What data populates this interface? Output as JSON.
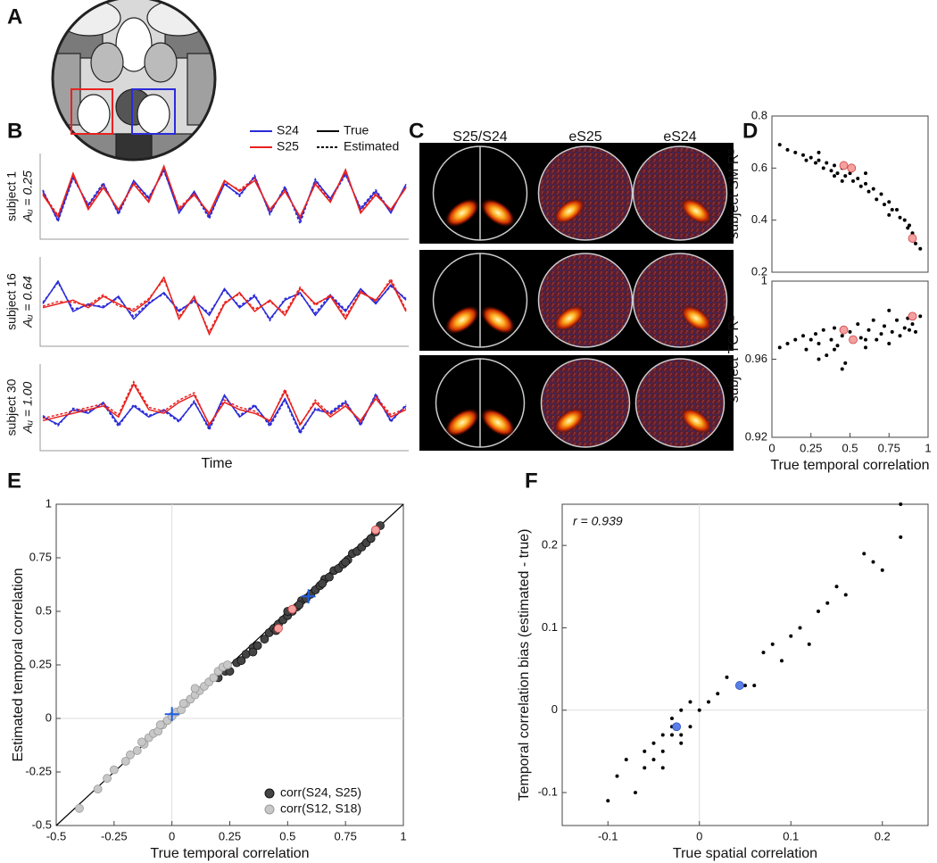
{
  "panel_labels": [
    "A",
    "B",
    "C",
    "D",
    "E",
    "F"
  ],
  "panel_c": {
    "titles": [
      "S25/S24",
      "eS25",
      "eS24"
    ]
  },
  "chart_data": [
    {
      "type": "line",
      "xlabel": "Time",
      "ylim": [
        0,
        1
      ],
      "legend": [
        {
          "name": "S24",
          "color": "#2b2bd9"
        },
        {
          "name": "S25",
          "color": "#e8221f"
        },
        {
          "name": "True",
          "dash": "none"
        },
        {
          "name": "Estimated",
          "dash": "3 2"
        }
      ],
      "panels": [
        {
          "label": "subject 1",
          "sublabel": "Aᵤ = 0.25",
          "series": [
            {
              "name": "S24",
              "style": "True",
              "values": [
                0.6,
                0.2,
                0.8,
                0.4,
                0.7,
                0.3,
                0.75,
                0.5,
                0.9,
                0.3,
                0.6,
                0.25,
                0.7,
                0.55,
                0.8,
                0.3,
                0.65,
                0.2,
                0.75,
                0.5,
                0.85,
                0.35,
                0.6,
                0.3,
                0.7
              ]
            },
            {
              "name": "S24",
              "style": "Estimated",
              "values": [
                0.62,
                0.18,
                0.78,
                0.42,
                0.72,
                0.28,
                0.73,
                0.52,
                0.88,
                0.33,
                0.58,
                0.22,
                0.72,
                0.53,
                0.82,
                0.28,
                0.67,
                0.15,
                0.77,
                0.48,
                0.83,
                0.37,
                0.62,
                0.32,
                0.68
              ]
            },
            {
              "name": "S25",
              "style": "True",
              "values": [
                0.55,
                0.25,
                0.85,
                0.35,
                0.65,
                0.35,
                0.7,
                0.45,
                0.95,
                0.35,
                0.55,
                0.3,
                0.75,
                0.6,
                0.75,
                0.35,
                0.6,
                0.25,
                0.7,
                0.45,
                0.9,
                0.3,
                0.55,
                0.35,
                0.65
              ]
            },
            {
              "name": "S25",
              "style": "Estimated",
              "values": [
                0.57,
                0.27,
                0.82,
                0.38,
                0.68,
                0.33,
                0.72,
                0.47,
                0.92,
                0.37,
                0.57,
                0.28,
                0.73,
                0.62,
                0.78,
                0.33,
                0.62,
                0.23,
                0.72,
                0.47,
                0.87,
                0.32,
                0.57,
                0.33,
                0.67
              ]
            }
          ]
        },
        {
          "label": "subject 16",
          "sublabel": "Aᵤ = 0.64",
          "series": [
            {
              "name": "S24",
              "style": "True",
              "values": [
                0.5,
                0.8,
                0.4,
                0.5,
                0.45,
                0.6,
                0.3,
                0.5,
                0.65,
                0.4,
                0.55,
                0.35,
                0.7,
                0.45,
                0.6,
                0.3,
                0.55,
                0.65,
                0.35,
                0.6,
                0.4,
                0.7,
                0.5,
                0.75,
                0.55
              ]
            },
            {
              "name": "S24",
              "style": "Estimated",
              "values": [
                0.52,
                0.78,
                0.43,
                0.48,
                0.47,
                0.58,
                0.33,
                0.52,
                0.63,
                0.42,
                0.53,
                0.38,
                0.68,
                0.47,
                0.62,
                0.28,
                0.57,
                0.63,
                0.38,
                0.62,
                0.42,
                0.68,
                0.52,
                0.73,
                0.57
              ]
            },
            {
              "name": "S25",
              "style": "True",
              "values": [
                0.45,
                0.5,
                0.55,
                0.45,
                0.6,
                0.5,
                0.4,
                0.55,
                0.85,
                0.3,
                0.6,
                0.1,
                0.5,
                0.65,
                0.4,
                0.55,
                0.35,
                0.7,
                0.5,
                0.6,
                0.3,
                0.65,
                0.55,
                0.8,
                0.4
              ]
            },
            {
              "name": "S25",
              "style": "Estimated",
              "values": [
                0.47,
                0.53,
                0.52,
                0.48,
                0.62,
                0.47,
                0.43,
                0.57,
                0.82,
                0.33,
                0.58,
                0.13,
                0.52,
                0.63,
                0.43,
                0.53,
                0.38,
                0.72,
                0.48,
                0.62,
                0.33,
                0.67,
                0.53,
                0.83,
                0.42
              ]
            }
          ]
        },
        {
          "label": "subject 30",
          "sublabel": "Aᵤ = 1.00",
          "series": [
            {
              "name": "S24",
              "style": "True",
              "values": [
                0.4,
                0.3,
                0.5,
                0.45,
                0.6,
                0.3,
                0.55,
                0.4,
                0.5,
                0.35,
                0.6,
                0.25,
                0.7,
                0.4,
                0.55,
                0.3,
                0.65,
                0.2,
                0.5,
                0.45,
                0.6,
                0.3,
                0.7,
                0.35,
                0.55
              ]
            },
            {
              "name": "S24",
              "style": "Estimated",
              "values": [
                0.42,
                0.28,
                0.52,
                0.47,
                0.58,
                0.27,
                0.57,
                0.42,
                0.48,
                0.33,
                0.62,
                0.22,
                0.68,
                0.42,
                0.57,
                0.27,
                0.63,
                0.17,
                0.52,
                0.47,
                0.62,
                0.28,
                0.72,
                0.33,
                0.57
              ]
            },
            {
              "name": "S25",
              "style": "True",
              "values": [
                0.35,
                0.4,
                0.45,
                0.5,
                0.55,
                0.4,
                0.85,
                0.5,
                0.45,
                0.6,
                0.7,
                0.3,
                0.6,
                0.5,
                0.45,
                0.35,
                0.75,
                0.3,
                0.6,
                0.4,
                0.55,
                0.35,
                0.65,
                0.4,
                0.5
              ]
            },
            {
              "name": "S25",
              "style": "Estimated",
              "values": [
                0.38,
                0.43,
                0.48,
                0.53,
                0.58,
                0.43,
                0.88,
                0.53,
                0.48,
                0.63,
                0.73,
                0.28,
                0.63,
                0.53,
                0.48,
                0.33,
                0.78,
                0.28,
                0.63,
                0.43,
                0.58,
                0.33,
                0.68,
                0.43,
                0.52
              ]
            }
          ]
        }
      ]
    },
    {
      "type": "scatter",
      "ylabel": "subject SM R²",
      "xlim": [
        0,
        1
      ],
      "ylim": [
        0.2,
        0.8
      ],
      "yticks": [
        0.2,
        0.4,
        0.6,
        0.8
      ],
      "series": [
        {
          "color": "#000",
          "marker": "dot",
          "x": [
            0.05,
            0.1,
            0.15,
            0.2,
            0.22,
            0.25,
            0.28,
            0.3,
            0.33,
            0.35,
            0.38,
            0.4,
            0.42,
            0.45,
            0.47,
            0.5,
            0.52,
            0.55,
            0.57,
            0.6,
            0.62,
            0.65,
            0.67,
            0.7,
            0.72,
            0.75,
            0.77,
            0.8,
            0.82,
            0.85,
            0.87,
            0.9,
            0.92,
            0.95,
            0.3,
            0.45,
            0.6,
            0.75,
            0.88,
            0.4
          ],
          "y": [
            0.69,
            0.67,
            0.66,
            0.65,
            0.63,
            0.64,
            0.62,
            0.63,
            0.6,
            0.62,
            0.59,
            0.61,
            0.58,
            0.6,
            0.57,
            0.58,
            0.55,
            0.56,
            0.53,
            0.54,
            0.51,
            0.52,
            0.48,
            0.5,
            0.46,
            0.47,
            0.44,
            0.44,
            0.41,
            0.4,
            0.37,
            0.35,
            0.31,
            0.29,
            0.66,
            0.55,
            0.58,
            0.42,
            0.38,
            0.57
          ]
        },
        {
          "color": "#f4a0a0",
          "stroke": "#d04040",
          "marker": "circle",
          "x": [
            0.46,
            0.51,
            0.9
          ],
          "y": [
            0.61,
            0.6,
            0.33
          ]
        }
      ]
    },
    {
      "type": "scatter",
      "xlabel": "True temporal correlation",
      "ylabel": "subject TC R²",
      "xlim": [
        0,
        1
      ],
      "ylim": [
        0.92,
        1
      ],
      "xticks": [
        0,
        0.25,
        0.5,
        0.75,
        1
      ],
      "yticks": [
        0.92,
        0.96,
        1
      ],
      "series": [
        {
          "color": "#000",
          "marker": "dot",
          "x": [
            0.05,
            0.1,
            0.15,
            0.2,
            0.22,
            0.25,
            0.28,
            0.3,
            0.33,
            0.35,
            0.38,
            0.4,
            0.42,
            0.45,
            0.47,
            0.5,
            0.52,
            0.55,
            0.57,
            0.6,
            0.62,
            0.65,
            0.67,
            0.7,
            0.72,
            0.75,
            0.77,
            0.8,
            0.82,
            0.85,
            0.87,
            0.9,
            0.92,
            0.95,
            0.3,
            0.45,
            0.6,
            0.75,
            0.88,
            0.4
          ],
          "y": [
            0.966,
            0.968,
            0.97,
            0.972,
            0.965,
            0.97,
            0.973,
            0.968,
            0.975,
            0.962,
            0.97,
            0.976,
            0.967,
            0.972,
            0.958,
            0.974,
            0.969,
            0.978,
            0.971,
            0.966,
            0.975,
            0.98,
            0.97,
            0.973,
            0.977,
            0.968,
            0.974,
            0.98,
            0.972,
            0.976,
            0.981,
            0.978,
            0.974,
            0.982,
            0.96,
            0.955,
            0.97,
            0.985,
            0.975,
            0.965
          ]
        },
        {
          "color": "#f4a0a0",
          "stroke": "#d04040",
          "marker": "circle",
          "x": [
            0.46,
            0.52,
            0.9
          ],
          "y": [
            0.975,
            0.97,
            0.982
          ]
        }
      ]
    },
    {
      "type": "scatter",
      "xlabel": "True temporal correlation",
      "ylabel": "Estimated temporal correlation",
      "xlim": [
        -0.5,
        1
      ],
      "ylim": [
        -0.5,
        1
      ],
      "xticks": [
        -0.5,
        -0.25,
        0,
        0.25,
        0.5,
        0.75,
        1
      ],
      "yticks": [
        -0.5,
        -0.25,
        0,
        0.25,
        0.5,
        0.75,
        1
      ],
      "zero_lines": true,
      "diagonal": true,
      "legend": "lower right",
      "series": [
        {
          "name": "corr(S24, S25)",
          "color": "#444",
          "stroke": "#111",
          "marker": "circle",
          "x": [
            0.2,
            0.23,
            0.25,
            0.28,
            0.3,
            0.32,
            0.35,
            0.37,
            0.4,
            0.42,
            0.44,
            0.46,
            0.48,
            0.5,
            0.52,
            0.54,
            0.56,
            0.58,
            0.6,
            0.62,
            0.64,
            0.66,
            0.68,
            0.7,
            0.72,
            0.74,
            0.76,
            0.78,
            0.8,
            0.82,
            0.84,
            0.86,
            0.88,
            0.9,
            0.35,
            0.45,
            0.55,
            0.65,
            0.75,
            0.5
          ],
          "y": [
            0.19,
            0.22,
            0.22,
            0.26,
            0.27,
            0.3,
            0.33,
            0.34,
            0.37,
            0.4,
            0.42,
            0.44,
            0.46,
            0.48,
            0.5,
            0.52,
            0.55,
            0.56,
            0.58,
            0.6,
            0.62,
            0.65,
            0.66,
            0.69,
            0.7,
            0.72,
            0.74,
            0.77,
            0.78,
            0.8,
            0.82,
            0.84,
            0.87,
            0.9,
            0.31,
            0.41,
            0.53,
            0.63,
            0.73,
            0.5
          ]
        },
        {
          "name": "corr(S12, S18)",
          "color": "#c8c8c8",
          "stroke": "#999",
          "marker": "circle",
          "x": [
            -0.4,
            -0.32,
            -0.28,
            -0.25,
            -0.2,
            -0.18,
            -0.15,
            -0.12,
            -0.1,
            -0.08,
            -0.06,
            -0.04,
            -0.02,
            0,
            0.02,
            0.04,
            0.06,
            0.08,
            0.1,
            0.12,
            0.14,
            0.16,
            0.18,
            0.2,
            0.22,
            0.24,
            -0.05,
            0.05,
            0.1,
            -0.13
          ],
          "y": [
            -0.42,
            -0.33,
            -0.28,
            -0.24,
            -0.2,
            -0.17,
            -0.15,
            -0.12,
            -0.09,
            -0.07,
            -0.06,
            -0.03,
            -0.01,
            0.01,
            0.03,
            0.04,
            0.07,
            0.09,
            0.11,
            0.13,
            0.15,
            0.17,
            0.19,
            0.22,
            0.24,
            0.25,
            -0.03,
            0.07,
            0.14,
            -0.11
          ]
        },
        {
          "color": "#f4a0a0",
          "stroke": "#d04040",
          "marker": "circle",
          "x": [
            0.46,
            0.52,
            0.88
          ],
          "y": [
            0.42,
            0.51,
            0.88
          ]
        },
        {
          "color": "#1f5fe0",
          "marker": "cross",
          "x": [
            0,
            0.59
          ],
          "y": [
            0.02,
            0.57
          ]
        }
      ]
    },
    {
      "type": "scatter",
      "xlabel": "True spatial correlation",
      "ylabel": "Temporal correlation bias (estimated - true)",
      "annotation": "r = 0.939",
      "xlim": [
        -0.15,
        0.25
      ],
      "ylim": [
        -0.14,
        0.25
      ],
      "xticks": [
        -0.1,
        0,
        0.1,
        0.2
      ],
      "yticks": [
        -0.1,
        0,
        0.1,
        0.2
      ],
      "zero_lines": true,
      "series": [
        {
          "color": "#000",
          "marker": "dot",
          "x": [
            -0.1,
            -0.09,
            -0.08,
            -0.07,
            -0.06,
            -0.05,
            -0.05,
            -0.04,
            -0.04,
            -0.03,
            -0.03,
            -0.02,
            -0.02,
            -0.01,
            -0.01,
            0,
            0.01,
            0.02,
            0.03,
            0.05,
            0.06,
            0.07,
            0.08,
            0.09,
            0.1,
            0.11,
            0.12,
            0.13,
            0.14,
            0.15,
            0.16,
            0.18,
            0.19,
            0.2,
            0.22,
            0.22,
            -0.06,
            -0.04,
            -0.03,
            -0.02
          ],
          "y": [
            -0.11,
            -0.08,
            -0.06,
            -0.1,
            -0.07,
            -0.04,
            -0.06,
            -0.03,
            -0.05,
            -0.02,
            -0.01,
            -0.04,
            0,
            -0.02,
            0.01,
            0,
            0.01,
            0.02,
            0.04,
            0.03,
            0.03,
            0.07,
            0.08,
            0.06,
            0.09,
            0.1,
            0.08,
            0.12,
            0.13,
            0.15,
            0.14,
            0.19,
            0.18,
            0.17,
            0.21,
            0.25,
            -0.05,
            -0.07,
            -0.03,
            -0.03
          ]
        },
        {
          "color": "#5a7fe8",
          "stroke": "#2a4fb8",
          "marker": "circle",
          "x": [
            0.044,
            -0.025
          ],
          "y": [
            0.03,
            -0.02
          ]
        }
      ]
    }
  ]
}
